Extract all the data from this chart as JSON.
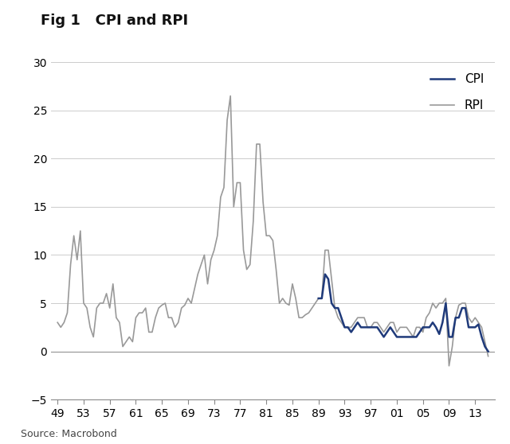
{
  "title": "Fig 1   CPI and RPI",
  "source": "Source: Macrobond",
  "title_fontsize": 13,
  "background_color": "#ffffff",
  "rpi_color": "#999999",
  "cpi_color": "#1f3a7a",
  "rpi_linewidth": 1.2,
  "cpi_linewidth": 1.8,
  "ylim": [
    -5,
    30
  ],
  "yticks": [
    -5,
    0,
    5,
    10,
    15,
    20,
    25,
    30
  ],
  "xticks": [
    1949,
    1953,
    1957,
    1961,
    1965,
    1969,
    1973,
    1977,
    1981,
    1985,
    1989,
    1993,
    1997,
    2001,
    2005,
    2009,
    2013
  ],
  "xticklabels": [
    "49",
    "53",
    "57",
    "61",
    "65",
    "69",
    "73",
    "77",
    "81",
    "85",
    "89",
    "93",
    "97",
    "01",
    "05",
    "09",
    "13"
  ],
  "rpi_data": {
    "years": [
      1949.0,
      1949.5,
      1950.0,
      1950.5,
      1951.0,
      1951.5,
      1952.0,
      1952.5,
      1953.0,
      1953.5,
      1954.0,
      1954.5,
      1955.0,
      1955.5,
      1956.0,
      1956.5,
      1957.0,
      1957.5,
      1958.0,
      1958.5,
      1959.0,
      1959.5,
      1960.0,
      1960.5,
      1961.0,
      1961.5,
      1962.0,
      1962.5,
      1963.0,
      1963.5,
      1964.0,
      1964.5,
      1965.0,
      1965.5,
      1966.0,
      1966.5,
      1967.0,
      1967.5,
      1968.0,
      1968.5,
      1969.0,
      1969.5,
      1970.0,
      1970.5,
      1971.0,
      1971.5,
      1972.0,
      1972.5,
      1973.0,
      1973.5,
      1974.0,
      1974.5,
      1975.0,
      1975.5,
      1976.0,
      1976.5,
      1977.0,
      1977.5,
      1978.0,
      1978.5,
      1979.0,
      1979.5,
      1980.0,
      1980.5,
      1981.0,
      1981.5,
      1982.0,
      1982.5,
      1983.0,
      1983.5,
      1984.0,
      1984.5,
      1985.0,
      1985.5,
      1986.0,
      1986.5,
      1987.0,
      1987.5,
      1988.0,
      1988.5,
      1989.0,
      1989.5,
      1990.0,
      1990.5,
      1991.0,
      1991.5,
      1992.0,
      1992.5,
      1993.0,
      1993.5,
      1994.0,
      1994.5,
      1995.0,
      1995.5,
      1996.0,
      1996.5,
      1997.0,
      1997.5,
      1998.0,
      1998.5,
      1999.0,
      1999.5,
      2000.0,
      2000.5,
      2001.0,
      2001.5,
      2002.0,
      2002.5,
      2003.0,
      2003.5,
      2004.0,
      2004.5,
      2005.0,
      2005.5,
      2006.0,
      2006.5,
      2007.0,
      2007.5,
      2008.0,
      2008.5,
      2009.0,
      2009.5,
      2010.0,
      2010.5,
      2011.0,
      2011.5,
      2012.0,
      2012.5,
      2013.0,
      2013.5,
      2014.0,
      2014.5,
      2015.0
    ],
    "values": [
      3.0,
      2.5,
      3.0,
      4.0,
      9.0,
      12.0,
      9.5,
      12.5,
      5.0,
      4.5,
      2.5,
      1.5,
      4.5,
      5.0,
      5.0,
      6.0,
      4.5,
      7.0,
      3.5,
      3.0,
      0.5,
      1.0,
      1.5,
      1.0,
      3.5,
      4.0,
      4.0,
      4.5,
      2.0,
      2.0,
      3.5,
      4.5,
      4.8,
      5.0,
      3.5,
      3.5,
      2.5,
      3.0,
      4.5,
      4.8,
      5.5,
      5.0,
      6.5,
      8.0,
      9.0,
      10.0,
      7.0,
      9.5,
      10.5,
      12.0,
      16.0,
      17.0,
      24.0,
      26.5,
      15.0,
      17.5,
      17.5,
      10.5,
      8.5,
      9.0,
      13.5,
      21.5,
      21.5,
      15.5,
      12.0,
      12.0,
      11.5,
      8.5,
      5.0,
      5.5,
      5.0,
      4.8,
      7.0,
      5.5,
      3.5,
      3.5,
      3.8,
      4.0,
      4.5,
      5.0,
      5.5,
      5.5,
      10.5,
      10.5,
      7.5,
      4.5,
      3.5,
      3.0,
      2.5,
      2.5,
      2.5,
      3.0,
      3.5,
      3.5,
      3.5,
      2.5,
      2.5,
      3.0,
      3.0,
      2.5,
      2.0,
      2.5,
      3.0,
      3.0,
      2.0,
      2.5,
      2.5,
      2.5,
      2.0,
      1.5,
      2.5,
      2.5,
      2.0,
      3.5,
      4.0,
      5.0,
      4.5,
      5.0,
      5.0,
      5.5,
      -1.5,
      0.5,
      3.5,
      4.8,
      5.0,
      5.0,
      3.5,
      3.0,
      3.5,
      3.0,
      2.5,
      1.0,
      -0.5
    ]
  },
  "cpi_data": {
    "years": [
      1989.0,
      1989.5,
      1990.0,
      1990.5,
      1991.0,
      1991.5,
      1992.0,
      1992.5,
      1993.0,
      1993.5,
      1994.0,
      1994.5,
      1995.0,
      1995.5,
      1996.0,
      1996.5,
      1997.0,
      1997.5,
      1998.0,
      1998.5,
      1999.0,
      1999.5,
      2000.0,
      2000.5,
      2001.0,
      2001.5,
      2002.0,
      2002.5,
      2003.0,
      2003.5,
      2004.0,
      2004.5,
      2005.0,
      2005.5,
      2006.0,
      2006.5,
      2007.0,
      2007.5,
      2008.0,
      2008.5,
      2009.0,
      2009.5,
      2010.0,
      2010.5,
      2011.0,
      2011.5,
      2012.0,
      2012.5,
      2013.0,
      2013.5,
      2014.0,
      2014.5,
      2015.0
    ],
    "values": [
      5.5,
      5.5,
      8.0,
      7.5,
      5.0,
      4.5,
      4.5,
      3.5,
      2.5,
      2.5,
      2.0,
      2.5,
      3.0,
      2.5,
      2.5,
      2.5,
      2.5,
      2.5,
      2.5,
      2.0,
      1.5,
      2.0,
      2.5,
      2.0,
      1.5,
      1.5,
      1.5,
      1.5,
      1.5,
      1.5,
      1.5,
      2.0,
      2.5,
      2.5,
      2.5,
      3.0,
      2.5,
      1.8,
      3.0,
      5.0,
      1.5,
      1.5,
      3.5,
      3.5,
      4.5,
      4.5,
      2.5,
      2.5,
      2.5,
      2.8,
      1.5,
      0.5,
      0.0
    ]
  }
}
